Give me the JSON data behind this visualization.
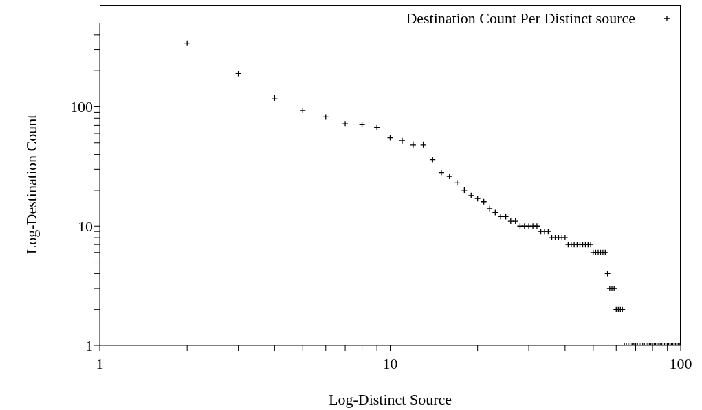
{
  "chart_data": {
    "type": "scatter",
    "xlabel": "Log-Distinct Source",
    "ylabel": "Log-Destination Count",
    "log": "xy",
    "grid": false,
    "legend": "top right",
    "marker": "cross",
    "xlim": [
      1,
      100
    ],
    "ylim": [
      1,
      500
    ],
    "xticks": [
      1,
      {
        "value": 2,
        "label": null
      },
      {
        "value": 3,
        "label": null
      },
      {
        "value": 4,
        "label": null
      },
      {
        "value": 5,
        "label": null
      },
      {
        "value": 6,
        "label": null
      },
      {
        "value": 7,
        "label": null
      },
      {
        "value": 8,
        "label": null
      },
      {
        "value": 9,
        "label": null
      },
      10,
      {
        "value": 20,
        "label": null
      },
      {
        "value": 30,
        "label": null
      },
      {
        "value": 40,
        "label": null
      },
      {
        "value": 50,
        "label": null
      },
      {
        "value": 60,
        "label": null
      },
      {
        "value": 70,
        "label": null
      },
      {
        "value": 80,
        "label": null
      },
      {
        "value": 90,
        "label": null
      },
      100
    ],
    "yticks": [
      1,
      {
        "value": 2,
        "label": null
      },
      {
        "value": 3,
        "label": null
      },
      {
        "value": 4,
        "label": null
      },
      {
        "value": 5,
        "label": null
      },
      {
        "value": 6,
        "label": null
      },
      {
        "value": 7,
        "label": null
      },
      {
        "value": 8,
        "label": null
      },
      {
        "value": 9,
        "label": null
      },
      10,
      {
        "value": 20,
        "label": null
      },
      {
        "value": 30,
        "label": null
      },
      {
        "value": 40,
        "label": null
      },
      {
        "value": 50,
        "label": null
      },
      {
        "value": 60,
        "label": null
      },
      {
        "value": 70,
        "label": null
      },
      {
        "value": 80,
        "label": null
      },
      {
        "value": 90,
        "label": null
      },
      100,
      {
        "value": 200,
        "label": null
      },
      {
        "value": 300,
        "label": null
      },
      {
        "value": 400,
        "label": null
      }
    ],
    "series": [
      {
        "name": "Destination Count Per Distinct source",
        "color": "#000000",
        "x": [
          2,
          3,
          4,
          5,
          6,
          7,
          8,
          9,
          10,
          11,
          12,
          13,
          14,
          15,
          16,
          17,
          18,
          19,
          20,
          21,
          22,
          23,
          24,
          25,
          26,
          27,
          28,
          29,
          30,
          31,
          32,
          33,
          34,
          35,
          36,
          37,
          38,
          39,
          40,
          41,
          42,
          43,
          44,
          45,
          46,
          47,
          48,
          49,
          50,
          51,
          52,
          53,
          54,
          55,
          56,
          57,
          58,
          59,
          60,
          61,
          62,
          63,
          64,
          65,
          66,
          67,
          68,
          69,
          70,
          71,
          72,
          73,
          74,
          75,
          76,
          77,
          78,
          79,
          80,
          81,
          82,
          83,
          84,
          85,
          86,
          87,
          88,
          89,
          90,
          91,
          92,
          93,
          94,
          95,
          96,
          97,
          98,
          99
        ],
        "values": [
          342,
          189,
          118,
          93,
          82,
          72,
          71,
          67,
          55,
          52,
          48,
          48,
          36,
          28,
          26,
          23,
          20,
          18,
          17,
          16,
          14,
          13,
          12,
          12,
          11,
          11,
          10,
          10,
          10,
          10,
          10,
          9,
          9,
          9,
          8,
          8,
          8,
          8,
          8,
          7,
          7,
          7,
          7,
          7,
          7,
          7,
          7,
          7,
          6,
          6,
          6,
          6,
          6,
          6,
          4,
          3,
          3,
          3,
          2,
          2,
          2,
          2,
          1,
          1,
          1,
          1,
          1,
          1,
          1,
          1,
          1,
          1,
          1,
          1,
          1,
          1,
          1,
          1,
          1,
          1,
          1,
          1,
          1,
          1,
          1,
          1,
          1,
          1,
          1,
          1,
          1,
          1,
          1,
          1,
          1,
          1,
          1,
          1
        ]
      }
    ]
  }
}
